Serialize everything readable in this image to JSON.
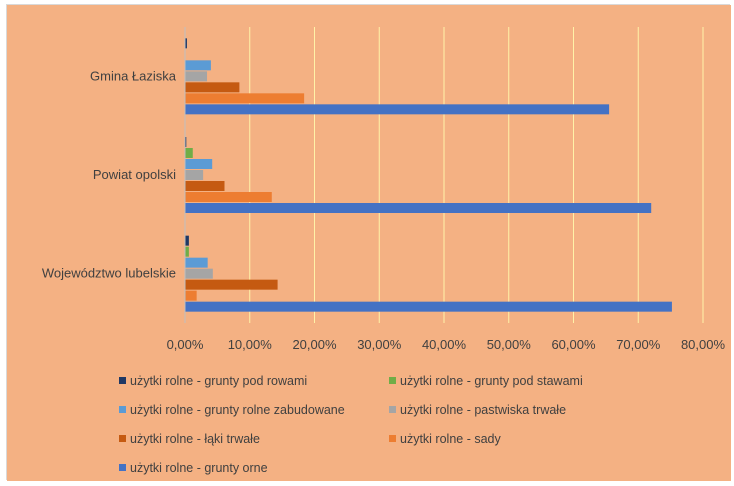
{
  "chart_data": {
    "type": "bar",
    "orientation": "horizontal",
    "background": "#F4B183",
    "gridline_color": "#FFF2A8",
    "grid": true,
    "legend_position": "bottom",
    "xlim": [
      0,
      80
    ],
    "x_ticks": [
      "0,00%",
      "10,00%",
      "20,00%",
      "30,00%",
      "40,00%",
      "50,00%",
      "60,00%",
      "70,00%",
      "80,00%"
    ],
    "categories": [
      "Gmina Łaziska",
      "Powiat opolski",
      "Województwo lubelskie"
    ],
    "series": [
      {
        "name": "użytki rolne - grunty pod rowami",
        "color": "#203864",
        "values": [
          0.3,
          0.2,
          0.6
        ]
      },
      {
        "name": "użytki rolne - grunty pod stawami",
        "color": "#70AD47",
        "values": [
          0.0,
          1.2,
          0.6
        ]
      },
      {
        "name": "użytki rolne - grunty rolne zabudowane",
        "color": "#5B9BD5",
        "values": [
          4.0,
          4.2,
          3.5
        ]
      },
      {
        "name": "użytki rolne - pastwiska trwałe",
        "color": "#A5A5A5",
        "values": [
          3.4,
          2.8,
          4.3
        ]
      },
      {
        "name": "użytki rolne - łąki trwałe",
        "color": "#C55A11",
        "values": [
          8.4,
          6.1,
          14.3
        ]
      },
      {
        "name": "użytki rolne - sady",
        "color": "#ED7D31",
        "values": [
          18.4,
          13.4,
          1.8
        ]
      },
      {
        "name": "użytki rolne - grunty orne",
        "color": "#4472C4",
        "values": [
          65.5,
          72.0,
          75.2
        ]
      }
    ]
  }
}
